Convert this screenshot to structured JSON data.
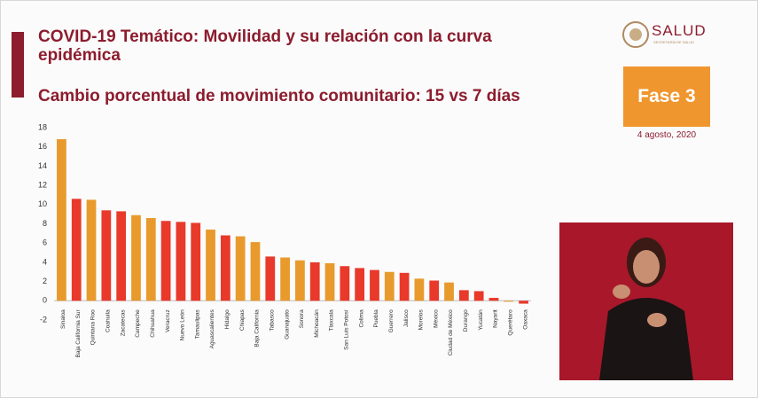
{
  "header": {
    "logo": "SALUD",
    "logo_sub": "SECRETARÍA DE SALUD",
    "phase": "Fase 3",
    "date": "4 agosto, 2020"
  },
  "chart_data": {
    "type": "bar",
    "title": "COVID-19 Temático: Movilidad y su relación con la curva epidémica",
    "subtitle": "Cambio porcentual de movimiento comunitario: 15 vs 7 días",
    "categories": [
      "Sinaloa",
      "Baja California Sur",
      "Quintana Roo",
      "Coahuila",
      "Zacatecas",
      "Campeche",
      "Chihuahua",
      "Veracruz",
      "Nuevo León",
      "Tamaulipas",
      "Aguascalientes",
      "Hidalgo",
      "Chiapas",
      "Baja California",
      "Tabasco",
      "Guanajuato",
      "Sonora",
      "Michoacán",
      "Tlaxcala",
      "San Luis Potosí",
      "Colima",
      "Puebla",
      "Guerrero",
      "Jalisco",
      "Morelos",
      "México",
      "Ciudad de México",
      "Durango",
      "Yucatán",
      "Nayarit",
      "Querétaro",
      "Oaxaca"
    ],
    "values": [
      16.8,
      10.6,
      10.5,
      9.4,
      9.3,
      8.9,
      8.6,
      8.3,
      8.2,
      8.1,
      7.4,
      6.8,
      6.7,
      6.1,
      4.6,
      4.5,
      4.2,
      4.0,
      3.9,
      3.6,
      3.4,
      3.2,
      3.0,
      2.9,
      2.3,
      2.1,
      1.9,
      1.1,
      1.0,
      0.3,
      -0.1,
      -0.3
    ],
    "colors": [
      "#e89a2c",
      "#e8392a",
      "#e89a2c",
      "#e8392a",
      "#e8392a",
      "#e89a2c",
      "#e89a2c",
      "#e8392a",
      "#e8392a",
      "#e8392a",
      "#e89a2c",
      "#e8392a",
      "#e89a2c",
      "#e89a2c",
      "#e8392a",
      "#e89a2c",
      "#e89a2c",
      "#e8392a",
      "#e89a2c",
      "#e8392a",
      "#e8392a",
      "#e8392a",
      "#e89a2c",
      "#e8392a",
      "#e89a2c",
      "#e8392a",
      "#e89a2c",
      "#e8392a",
      "#e8392a",
      "#e8392a",
      "#e89a2c",
      "#e8392a"
    ],
    "ylim": [
      -2,
      18
    ],
    "yticks": [
      -2,
      0,
      2,
      4,
      6,
      8,
      10,
      12,
      14,
      16,
      18
    ],
    "grid": false
  }
}
